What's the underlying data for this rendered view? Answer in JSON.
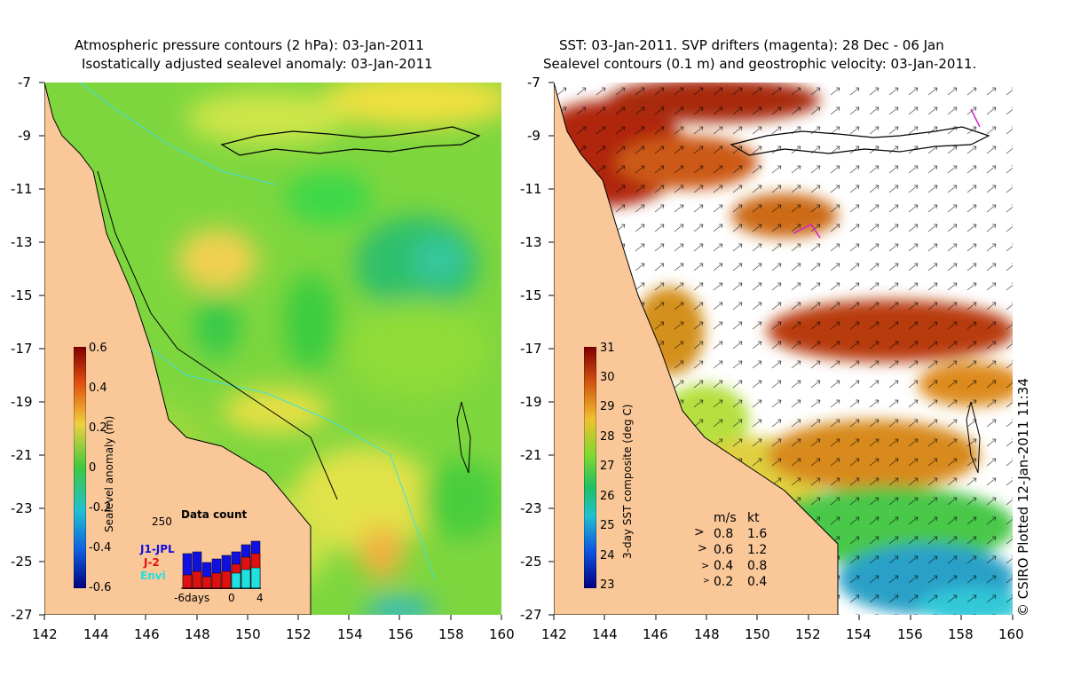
{
  "left_panel": {
    "title_line1": "Atmospheric pressure contours (2 hPa): 03-Jan-2011",
    "title_line2": "Isostatically adjusted sealevel anomaly: 03-Jan-2011",
    "colorbar": {
      "label": "Sealevel anomaly (m)",
      "ticks": [
        "0.6",
        "0.4",
        "0.2",
        "0",
        "-0.2",
        "-0.4",
        "-0.6"
      ]
    },
    "data_count": {
      "title": "Data count",
      "max_label": "250",
      "series_labels": [
        "J1-JPL",
        "J-2",
        "Envi"
      ],
      "series_colors": [
        "#1010e0",
        "#e01010",
        "#20e0e0"
      ],
      "x_labels": [
        "-6days",
        "0",
        "4"
      ]
    }
  },
  "right_panel": {
    "title_line1": "SST: 03-Jan-2011. SVP drifters (magenta): 28 Dec - 06 Jan",
    "title_line2": "Sealevel contours (0.1 m) and geostrophic velocity: 03-Jan-2011.",
    "colorbar": {
      "label": "3-day SST composite (deg C)",
      "ticks": [
        "31",
        "30",
        "29",
        "28",
        "27",
        "26",
        "25",
        "24",
        "23"
      ]
    },
    "velocity_legend": {
      "header_ms": "m/s",
      "header_kt": "kt",
      "rows": [
        {
          "ms": "0.8",
          "kt": "1.6"
        },
        {
          "ms": "0.6",
          "kt": "1.2"
        },
        {
          "ms": "0.4",
          "kt": "0.8"
        },
        {
          "ms": "0.2",
          "kt": "0.4"
        }
      ]
    }
  },
  "axes": {
    "y_ticks": [
      "-7",
      "-9",
      "-11",
      "-13",
      "-15",
      "-17",
      "-19",
      "-21",
      "-23",
      "-25",
      "-27"
    ],
    "x_ticks": [
      "142",
      "144",
      "146",
      "148",
      "150",
      "152",
      "154",
      "156",
      "158",
      "160"
    ]
  },
  "credit": "© CSIRO Plotted 12-Jan-2011 11:34",
  "colors": {
    "land": "#f9c798",
    "sea_green": "#6ed43a",
    "coast": "#000000",
    "bathymetry": "#40e0e0"
  }
}
